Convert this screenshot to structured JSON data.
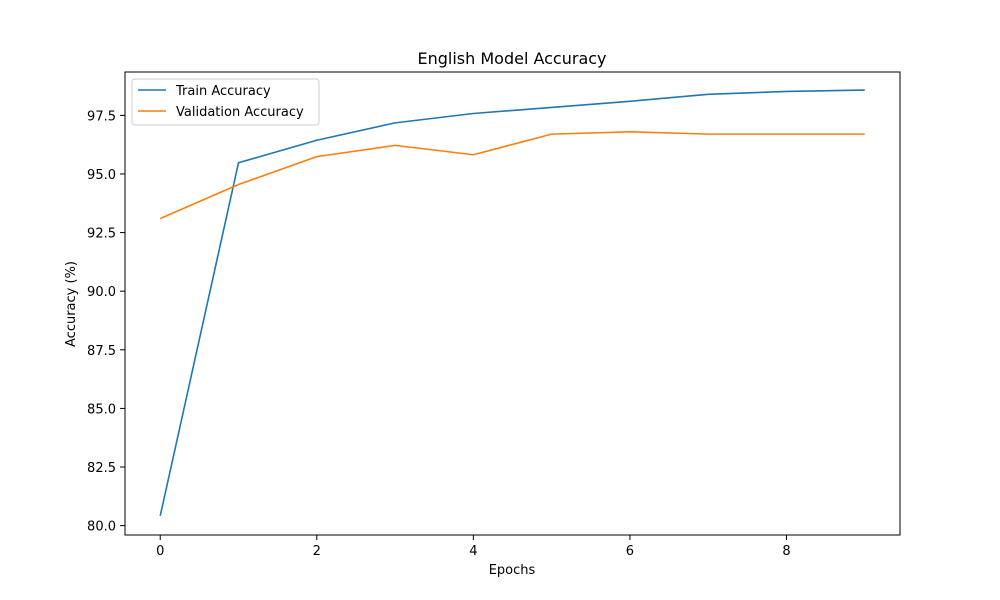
{
  "chart_data": {
    "type": "line",
    "title": "English Model Accuracy",
    "xlabel": "Epochs",
    "ylabel": "Accuracy (%)",
    "xlim": [
      -0.45,
      9.45
    ],
    "ylim": [
      79.6,
      99.35
    ],
    "x": [
      0,
      1,
      2,
      3,
      4,
      5,
      6,
      7,
      8,
      9
    ],
    "xticks": [
      0,
      2,
      4,
      6,
      8
    ],
    "xtick_labels": [
      "0",
      "2",
      "4",
      "6",
      "8"
    ],
    "yticks": [
      80.0,
      82.5,
      85.0,
      87.5,
      90.0,
      92.5,
      95.0,
      97.5
    ],
    "ytick_labels": [
      "80.0",
      "82.5",
      "85.0",
      "87.5",
      "90.0",
      "92.5",
      "95.0",
      "97.5"
    ],
    "grid": false,
    "legend_position": "upper-left",
    "series": [
      {
        "name": "Train Accuracy",
        "color": "#1f77b4",
        "values": [
          80.42,
          95.48,
          96.44,
          97.18,
          97.58,
          97.84,
          98.1,
          98.4,
          98.52,
          98.58
        ]
      },
      {
        "name": "Validation Accuracy",
        "color": "#ff7f0e",
        "values": [
          93.1,
          94.55,
          95.74,
          96.22,
          95.82,
          96.7,
          96.8,
          96.7,
          96.7,
          96.7
        ]
      }
    ]
  }
}
